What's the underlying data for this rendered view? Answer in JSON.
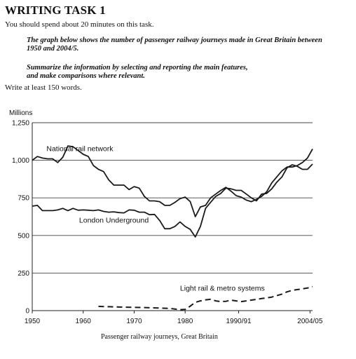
{
  "task": {
    "heading": "WRITING TASK 1",
    "time_note": "You should spend about 20 minutes on this task.",
    "prompt": "The graph below shows the number of passenger railway journeys made in Great Britain between 1950 and 2004/5.",
    "instruction_line1": "Summarize the information by selecting and reporting the main features,",
    "instruction_line2": "and make comparisons where relevant.",
    "word_count": "Write at least 150 words."
  },
  "chart_data": {
    "type": "line",
    "title": "",
    "ylabel": "Millions",
    "xlabel": "Passenger railway journeys, Great Britain",
    "ylim": [
      0,
      1250
    ],
    "xlim": [
      1950,
      2005
    ],
    "grid": true,
    "yticks": [
      {
        "value": 0,
        "label": "0"
      },
      {
        "value": 250,
        "label": "250"
      },
      {
        "value": 500,
        "label": "500"
      },
      {
        "value": 750,
        "label": "750"
      },
      {
        "value": 1000,
        "label": "1,000"
      },
      {
        "value": 1250,
        "label": "1,250"
      }
    ],
    "xticks": [
      {
        "value": 1950,
        "label": "1950"
      },
      {
        "value": 1960,
        "label": "1960"
      },
      {
        "value": 1970,
        "label": "1970"
      },
      {
        "value": 1980,
        "label": "1980"
      },
      {
        "value": 1990.5,
        "label": "1990/91"
      },
      {
        "value": 2004.5,
        "label": "2004/05"
      }
    ],
    "series": [
      {
        "name": "National rail network",
        "style": "solid",
        "color": "#1a1a1a",
        "points": [
          [
            1950,
            1000
          ],
          [
            1951,
            1025
          ],
          [
            1952,
            1015
          ],
          [
            1953,
            1010
          ],
          [
            1954,
            1010
          ],
          [
            1955,
            985
          ],
          [
            1956,
            1020
          ],
          [
            1957,
            1095
          ],
          [
            1958,
            1090
          ],
          [
            1959,
            1065
          ],
          [
            1960,
            1040
          ],
          [
            1961,
            1025
          ],
          [
            1962,
            965
          ],
          [
            1963,
            940
          ],
          [
            1964,
            925
          ],
          [
            1965,
            870
          ],
          [
            1966,
            835
          ],
          [
            1967,
            835
          ],
          [
            1968,
            835
          ],
          [
            1969,
            805
          ],
          [
            1970,
            825
          ],
          [
            1971,
            815
          ],
          [
            1972,
            760
          ],
          [
            1973,
            730
          ],
          [
            1974,
            730
          ],
          [
            1975,
            725
          ],
          [
            1976,
            700
          ],
          [
            1977,
            700
          ],
          [
            1978,
            720
          ],
          [
            1979,
            745
          ],
          [
            1980,
            755
          ],
          [
            1981,
            725
          ],
          [
            1982,
            625
          ],
          [
            1983,
            690
          ],
          [
            1984,
            700
          ],
          [
            1985,
            750
          ],
          [
            1986,
            775
          ],
          [
            1987,
            800
          ],
          [
            1988,
            820
          ],
          [
            1989,
            795
          ],
          [
            1990,
            765
          ],
          [
            1991,
            755
          ],
          [
            1992,
            735
          ],
          [
            1993,
            725
          ],
          [
            1994,
            740
          ],
          [
            1995,
            760
          ],
          [
            1996,
            790
          ],
          [
            1997,
            850
          ],
          [
            1998,
            890
          ],
          [
            1999,
            930
          ],
          [
            2000,
            955
          ],
          [
            2001,
            955
          ],
          [
            2002,
            965
          ],
          [
            2003,
            985
          ],
          [
            2004,
            1015
          ],
          [
            2005,
            1075
          ]
        ]
      },
      {
        "name": "London Underground",
        "style": "solid",
        "color": "#1a1a1a",
        "points": [
          [
            1950,
            695
          ],
          [
            1951,
            700
          ],
          [
            1952,
            665
          ],
          [
            1953,
            665
          ],
          [
            1954,
            665
          ],
          [
            1955,
            670
          ],
          [
            1956,
            680
          ],
          [
            1957,
            665
          ],
          [
            1958,
            680
          ],
          [
            1959,
            668
          ],
          [
            1960,
            670
          ],
          [
            1961,
            668
          ],
          [
            1962,
            665
          ],
          [
            1963,
            670
          ],
          [
            1964,
            660
          ],
          [
            1965,
            655
          ],
          [
            1966,
            657
          ],
          [
            1967,
            652
          ],
          [
            1968,
            650
          ],
          [
            1969,
            670
          ],
          [
            1970,
            668
          ],
          [
            1971,
            655
          ],
          [
            1972,
            655
          ],
          [
            1973,
            638
          ],
          [
            1974,
            640
          ],
          [
            1975,
            600
          ],
          [
            1976,
            545
          ],
          [
            1977,
            545
          ],
          [
            1978,
            560
          ],
          [
            1979,
            590
          ],
          [
            1980,
            560
          ],
          [
            1981,
            540
          ],
          [
            1982,
            490
          ],
          [
            1983,
            560
          ],
          [
            1984,
            680
          ],
          [
            1985,
            720
          ],
          [
            1986,
            760
          ],
          [
            1987,
            780
          ],
          [
            1988,
            815
          ],
          [
            1989,
            810
          ],
          [
            1990,
            800
          ],
          [
            1991,
            800
          ],
          [
            1992,
            775
          ],
          [
            1993,
            750
          ],
          [
            1994,
            730
          ],
          [
            1995,
            775
          ],
          [
            1996,
            780
          ],
          [
            1997,
            810
          ],
          [
            1998,
            855
          ],
          [
            1999,
            890
          ],
          [
            2000,
            950
          ],
          [
            2001,
            970
          ],
          [
            2002,
            960
          ],
          [
            2003,
            940
          ],
          [
            2004,
            940
          ],
          [
            2005,
            975
          ]
        ]
      },
      {
        "name": "Light rail & metro systems",
        "style": "dashed",
        "color": "#1a1a1a",
        "points": [
          [
            1963,
            28
          ],
          [
            1965,
            26
          ],
          [
            1968,
            23
          ],
          [
            1971,
            21
          ],
          [
            1974,
            18
          ],
          [
            1977,
            15
          ],
          [
            1979,
            6
          ],
          [
            1980,
            8
          ],
          [
            1981,
            30
          ],
          [
            1982,
            55
          ],
          [
            1983,
            65
          ],
          [
            1984,
            72
          ],
          [
            1985,
            75
          ],
          [
            1986,
            65
          ],
          [
            1987,
            60
          ],
          [
            1988,
            62
          ],
          [
            1989,
            70
          ],
          [
            1990,
            65
          ],
          [
            1991,
            60
          ],
          [
            1992,
            65
          ],
          [
            1993,
            70
          ],
          [
            1994,
            75
          ],
          [
            1995,
            80
          ],
          [
            1996,
            85
          ],
          [
            1997,
            90
          ],
          [
            1998,
            100
          ],
          [
            1999,
            110
          ],
          [
            2000,
            125
          ],
          [
            2001,
            135
          ],
          [
            2002,
            140
          ],
          [
            2003,
            145
          ],
          [
            2004,
            150
          ],
          [
            2005,
            160
          ]
        ]
      }
    ]
  }
}
